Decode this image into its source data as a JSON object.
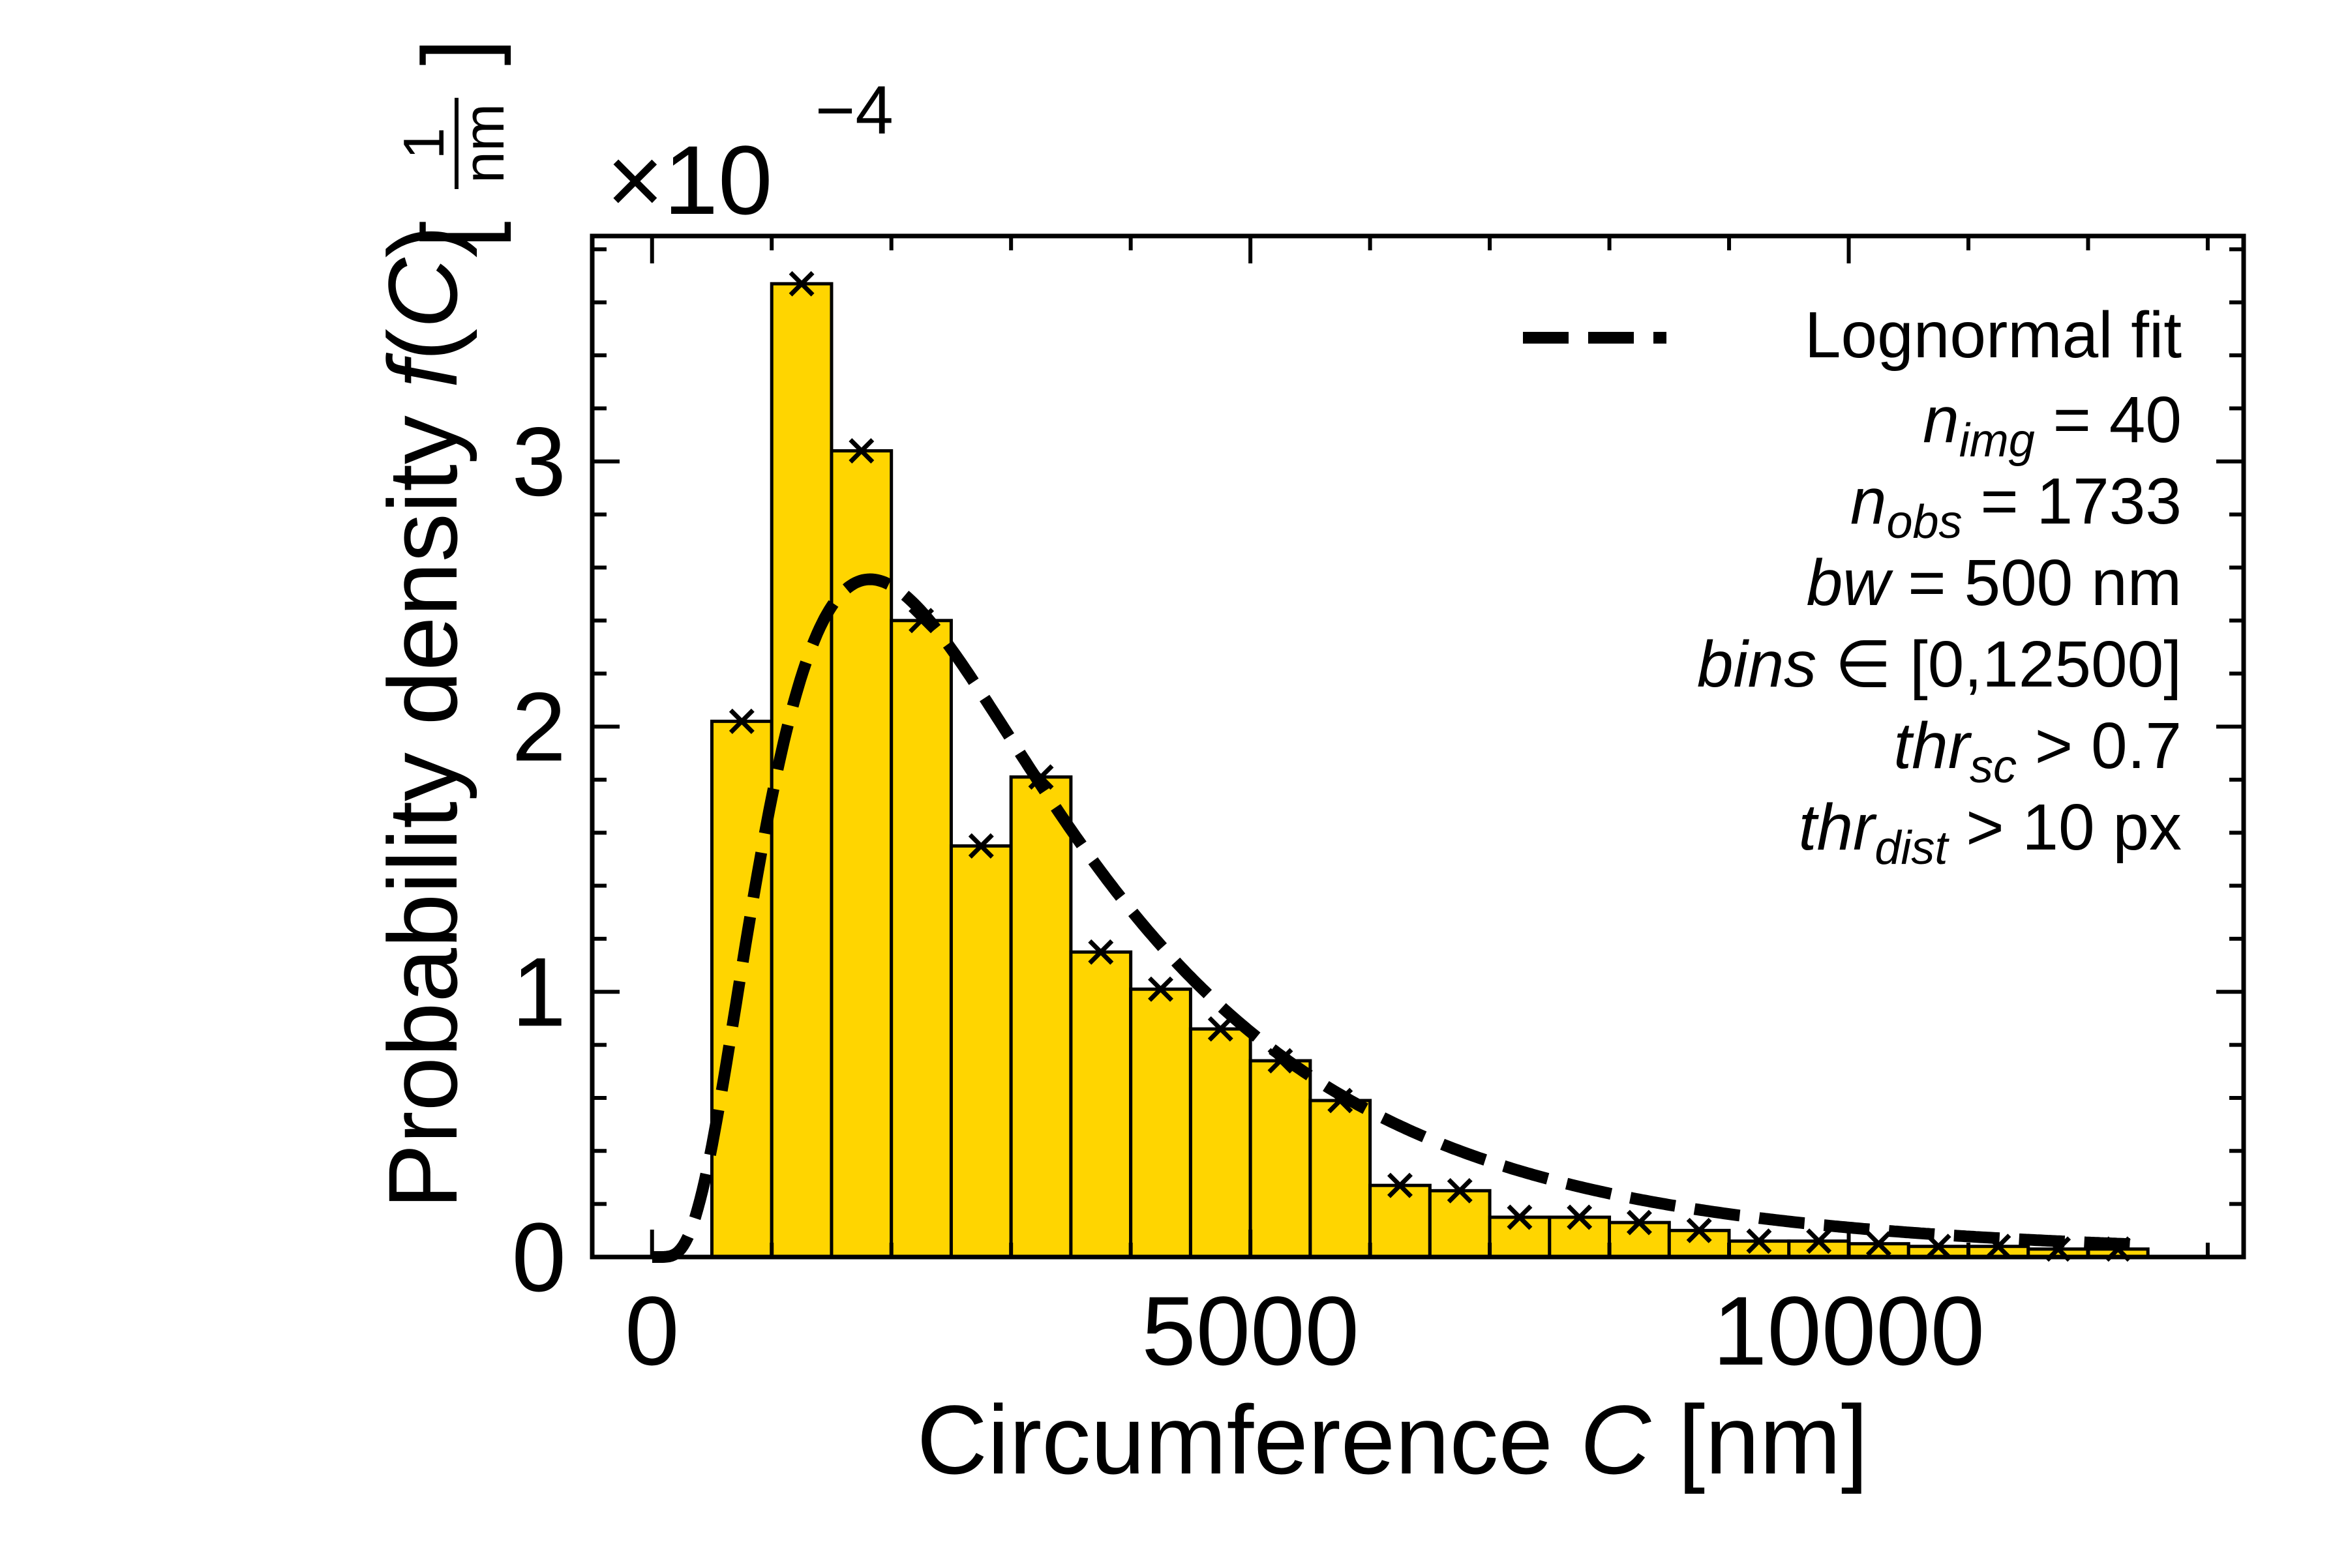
{
  "chart_data": {
    "type": "bar",
    "xlabel_parts": [
      "Circumference ",
      "C",
      " [nm]"
    ],
    "ylabel_parts": [
      "Probability density ",
      "f",
      "(",
      "C",
      ")"
    ],
    "ylabel_unit_num": "1",
    "ylabel_unit_den": "nm",
    "y_multiplier": {
      "base": "×10",
      "exponent": "−4"
    },
    "xlim": [
      -500,
      13300
    ],
    "ylim": [
      0,
      3.85
    ],
    "x_ticks": [
      0,
      5000,
      10000
    ],
    "x_tick_labels": [
      "0",
      "5000",
      "10000"
    ],
    "y_ticks": [
      0,
      1,
      2,
      3
    ],
    "y_tick_labels": [
      "0",
      "1",
      "2",
      "3"
    ],
    "bin_width": 500,
    "bin_edges_start": 500,
    "bins": [
      {
        "x0": 500,
        "x1": 1000,
        "value": 2.02
      },
      {
        "x0": 1000,
        "x1": 1500,
        "value": 3.67
      },
      {
        "x0": 1500,
        "x1": 2000,
        "value": 3.04
      },
      {
        "x0": 2000,
        "x1": 2500,
        "value": 2.4
      },
      {
        "x0": 2500,
        "x1": 3000,
        "value": 1.55
      },
      {
        "x0": 3000,
        "x1": 3500,
        "value": 1.81
      },
      {
        "x0": 3500,
        "x1": 4000,
        "value": 1.15
      },
      {
        "x0": 4000,
        "x1": 4500,
        "value": 1.01
      },
      {
        "x0": 4500,
        "x1": 5000,
        "value": 0.86
      },
      {
        "x0": 5000,
        "x1": 5500,
        "value": 0.74
      },
      {
        "x0": 5500,
        "x1": 6000,
        "value": 0.59
      },
      {
        "x0": 6000,
        "x1": 6500,
        "value": 0.27
      },
      {
        "x0": 6500,
        "x1": 7000,
        "value": 0.25
      },
      {
        "x0": 7000,
        "x1": 7500,
        "value": 0.15
      },
      {
        "x0": 7500,
        "x1": 8000,
        "value": 0.15
      },
      {
        "x0": 8000,
        "x1": 8500,
        "value": 0.13
      },
      {
        "x0": 8500,
        "x1": 9000,
        "value": 0.1
      },
      {
        "x0": 9000,
        "x1": 9500,
        "value": 0.06
      },
      {
        "x0": 9500,
        "x1": 10000,
        "value": 0.06
      },
      {
        "x0": 10000,
        "x1": 10500,
        "value": 0.05
      },
      {
        "x0": 10500,
        "x1": 11000,
        "value": 0.04
      },
      {
        "x0": 11000,
        "x1": 11500,
        "value": 0.04
      },
      {
        "x0": 11500,
        "x1": 12000,
        "value": 0.03
      },
      {
        "x0": 12000,
        "x1": 12500,
        "value": 0.03
      }
    ],
    "markers": [
      {
        "x": 750,
        "y": 2.02
      },
      {
        "x": 1250,
        "y": 3.67
      },
      {
        "x": 1750,
        "y": 3.04
      },
      {
        "x": 2250,
        "y": 2.4
      },
      {
        "x": 2750,
        "y": 1.55
      },
      {
        "x": 3250,
        "y": 1.81
      },
      {
        "x": 3750,
        "y": 1.15
      },
      {
        "x": 4250,
        "y": 1.01
      },
      {
        "x": 4750,
        "y": 0.86
      },
      {
        "x": 5250,
        "y": 0.74
      },
      {
        "x": 5750,
        "y": 0.59
      },
      {
        "x": 6250,
        "y": 0.27
      },
      {
        "x": 6750,
        "y": 0.25
      },
      {
        "x": 7250,
        "y": 0.15
      },
      {
        "x": 7750,
        "y": 0.15
      },
      {
        "x": 8250,
        "y": 0.13
      },
      {
        "x": 8750,
        "y": 0.1
      },
      {
        "x": 9250,
        "y": 0.06
      },
      {
        "x": 9750,
        "y": 0.06
      },
      {
        "x": 10250,
        "y": 0.05
      },
      {
        "x": 10750,
        "y": 0.04
      },
      {
        "x": 11250,
        "y": 0.04
      },
      {
        "x": 11750,
        "y": 0.03
      },
      {
        "x": 12250,
        "y": 0.03
      }
    ],
    "fit": {
      "name": "Lognormal fit",
      "kind": "lognormal",
      "mu": 7.97,
      "sigma": 0.68,
      "x_range": [
        0,
        12500
      ]
    },
    "legend": {
      "placement": "top-right",
      "lines": [
        {
          "sym": "n",
          "sub": "img",
          "rest": " = 40"
        },
        {
          "sym": "n",
          "sub": "obs",
          "rest": " = 1733"
        },
        {
          "sym": "bw",
          "sub": "",
          "rest": " = 500 nm"
        },
        {
          "sym": "bins",
          "sub": "",
          "rest": " ∈ [0,12500]"
        },
        {
          "sym": "thr",
          "sub": "sc",
          "rest": " >  0.7"
        },
        {
          "sym": "thr",
          "sub": "dist",
          "rest": " > 10 px"
        }
      ]
    },
    "grid": false,
    "colors": {
      "bar_fill": "#FFD500",
      "bar_edge": "#000000",
      "fit_line": "#000000",
      "marker": "#000000"
    }
  }
}
